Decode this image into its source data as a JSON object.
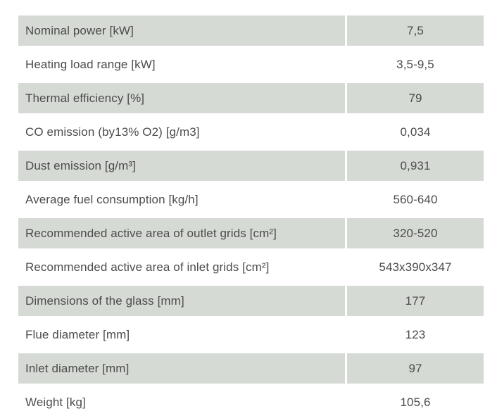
{
  "colors": {
    "page_bg": "#ffffff",
    "row_alt_bg": "#d6dad5",
    "text": "#4c4c4b"
  },
  "table": {
    "rows": [
      {
        "label": "Nominal power [kW]",
        "value": "7,5"
      },
      {
        "label": "Heating load range [kW]",
        "value": "3,5-9,5"
      },
      {
        "label": "Thermal efficiency [%]",
        "value": "79"
      },
      {
        "label": "CO emission (by13% O2) [g/m3]",
        "value": "0,034"
      },
      {
        "label": "Dust emission [g/m³]",
        "value": "0,931"
      },
      {
        "label": "Average fuel consumption [kg/h]",
        "value": "560-640"
      },
      {
        "label": "Recommended active area of outlet grids [cm²]",
        "value": "320-520"
      },
      {
        "label": "Recommended active area of inlet grids [cm²]",
        "value": "543x390x347"
      },
      {
        "label": "Dimensions of the glass [mm]",
        "value": "177"
      },
      {
        "label": "Flue diameter [mm]",
        "value": "123"
      },
      {
        "label": "Inlet diameter [mm]",
        "value": "97"
      },
      {
        "label": "Weight [kg]",
        "value": "105,6"
      }
    ]
  }
}
